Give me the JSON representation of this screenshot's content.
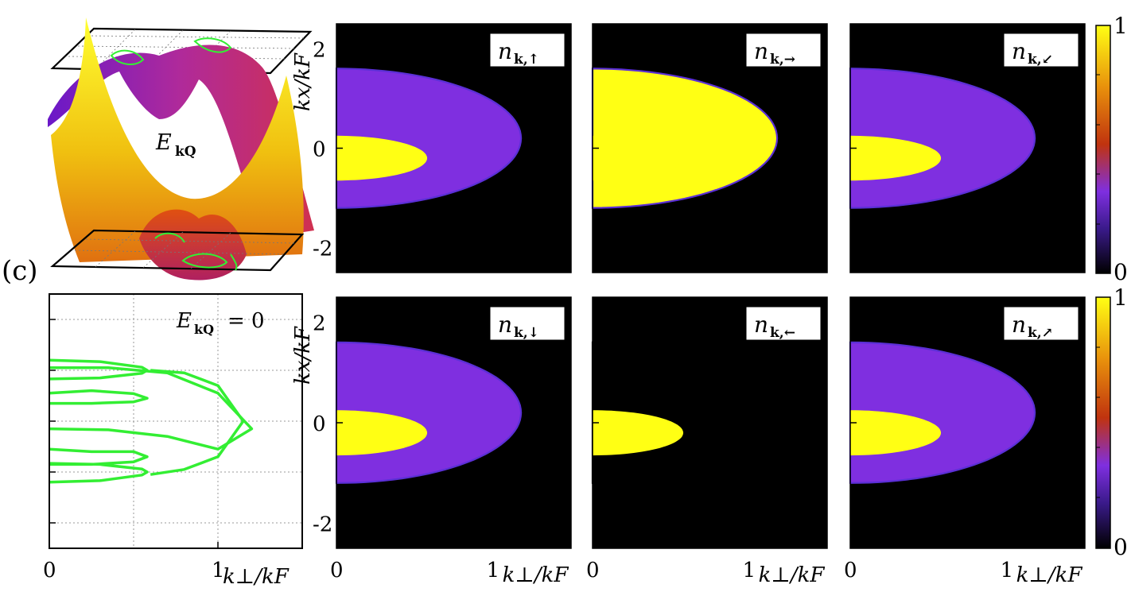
{
  "panel_label": "(c)",
  "surface_label": "E",
  "surface_label_sub": "kQ",
  "contour_label": "E",
  "contour_label_sub": "kQ",
  "contour_label_tail": "= 0",
  "colorbar": {
    "max_label": "1",
    "min_label": "0"
  },
  "colors": {
    "black": "#000000",
    "purple": "#7f2fe0",
    "red": "#c0330f",
    "orange": "#e8900c",
    "yellow": "#ffff14",
    "contour": "#33ee33"
  },
  "chart_data": [
    {
      "type": "line",
      "title": "E_kQ = 0",
      "xlabel": "k⊥/kF",
      "ylabel": "",
      "xlim": [
        0,
        1.5
      ],
      "ylim": [
        -2.5,
        2.5
      ],
      "x_ticks": [
        "0",
        "1"
      ],
      "y_ticks": [],
      "grid": true,
      "series": [
        {
          "x": [
            0,
            0.3,
            0.55,
            0.58,
            0.55,
            0.3,
            0
          ],
          "y": [
            1.2,
            1.17,
            1.06,
            1.0,
            0.94,
            0.85,
            0.83
          ]
        },
        {
          "x": [
            0,
            0.25,
            0.5,
            0.58,
            0.5,
            0.25,
            0
          ],
          "y": [
            0.55,
            0.6,
            0.54,
            0.45,
            0.38,
            0.35,
            0.35
          ]
        },
        {
          "x": [
            0,
            0.35,
            0.7,
            1.0,
            1.2,
            1.0,
            0.7,
            0.35,
            0
          ],
          "y": [
            -0.15,
            -0.17,
            -0.3,
            -0.55,
            -0.15,
            0.55,
            0.95,
            1.05,
            1.05
          ]
        },
        {
          "x": [
            0.6,
            0.8,
            1.0,
            1.15,
            1.0,
            0.8,
            0.6
          ],
          "y": [
            1.0,
            0.95,
            0.7,
            0.0,
            -0.7,
            -0.95,
            -1.05
          ]
        },
        {
          "x": [
            0,
            0.25,
            0.5,
            0.58,
            0.5,
            0.25,
            0
          ],
          "y": [
            -0.55,
            -0.6,
            -0.6,
            -0.7,
            -0.8,
            -0.85,
            -0.85
          ]
        },
        {
          "x": [
            0,
            0.3,
            0.55,
            0.58,
            0.55,
            0.3,
            0
          ],
          "y": [
            -1.2,
            -1.17,
            -1.06,
            -1.0,
            -0.94,
            -0.85,
            -0.83
          ]
        }
      ]
    },
    {
      "type": "heatmap",
      "panels": [
        {
          "label": "n_{k,↑}",
          "label_main": "n",
          "label_sub": "k,↑",
          "outer_level": 0.33,
          "inner_level": 1.0,
          "edge": "#5b2fd6"
        },
        {
          "label": "n_{k,→}",
          "label_main": "n",
          "label_sub": "k,→",
          "outer_level": 1.0,
          "inner_level": 1.0,
          "edge": "#5b2fd6"
        },
        {
          "label": "n_{k,↙}",
          "label_main": "n",
          "label_sub": "k,↙",
          "outer_level": 0.33,
          "inner_level": 1.0,
          "edge": "#5b2fd6"
        },
        {
          "label": "n_{k,↓}",
          "label_main": "n",
          "label_sub": "k,↓",
          "outer_level": 0.33,
          "inner_level": 1.0,
          "edge": "#5b2fd6"
        },
        {
          "label": "n_{k,←}",
          "label_main": "n",
          "label_sub": "k,←",
          "outer_level": 0.0,
          "inner_level": 1.0,
          "edge": "#000000"
        },
        {
          "label": "n_{k,↗}",
          "label_main": "n",
          "label_sub": "k,↗",
          "outer_level": 0.33,
          "inner_level": 1.0,
          "edge": "#5b2fd6"
        }
      ],
      "xlabel": "k⊥/kF",
      "ylabel": "kx/kF",
      "xlim": [
        0,
        1.5
      ],
      "ylim": [
        -2.5,
        2.5
      ],
      "x_ticks": [
        "0",
        "1"
      ],
      "y_ticks": [
        "2",
        "0",
        "-2"
      ],
      "colorbar_range": [
        0,
        1
      ]
    }
  ]
}
